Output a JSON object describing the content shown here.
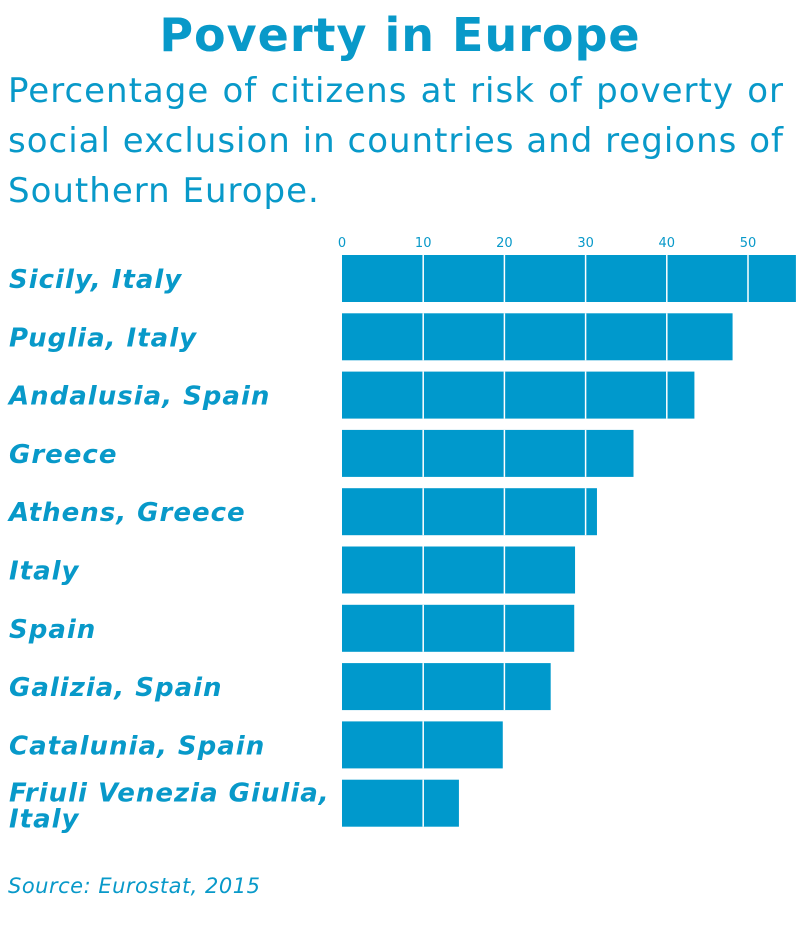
{
  "header": {
    "title": "Poverty in Europe",
    "subtitle": "Percentage of citizens at risk of poverty or social exclusion in countries and regions of Southern Europe."
  },
  "footer": {
    "source": "Source: Eurostat, 2015"
  },
  "colors": {
    "accent": "#0899c9",
    "bar": "#0099cc",
    "bar_divider": "#ffffff"
  },
  "chart_data": {
    "type": "bar",
    "orientation": "horizontal",
    "title": "Poverty in Europe",
    "subtitle": "Percentage of citizens at risk of poverty or social exclusion in countries and regions of Southern Europe.",
    "xlabel": "",
    "ylabel": "",
    "xlim": [
      0,
      56
    ],
    "ticks": [
      0,
      10,
      20,
      30,
      40,
      50
    ],
    "tick_labels": [
      "0",
      "10",
      "20",
      "30",
      "40",
      "50"
    ],
    "axis_position": "top",
    "grid": true,
    "legend": "none",
    "categories": [
      [
        "Sicily, Italy"
      ],
      [
        "Puglia, Italy"
      ],
      [
        "Andalusia, Spain"
      ],
      [
        "Greece"
      ],
      [
        "Athens, Greece"
      ],
      [
        "Italy"
      ],
      [
        "Spain"
      ],
      [
        "Galizia, Spain"
      ],
      [
        "Catalunia, Spain"
      ],
      [
        "Friuli Venezia Giulia,",
        "Italy"
      ]
    ],
    "values": [
      55.9,
      48.1,
      43.4,
      35.9,
      31.4,
      28.7,
      28.6,
      25.7,
      19.8,
      14.4
    ]
  }
}
